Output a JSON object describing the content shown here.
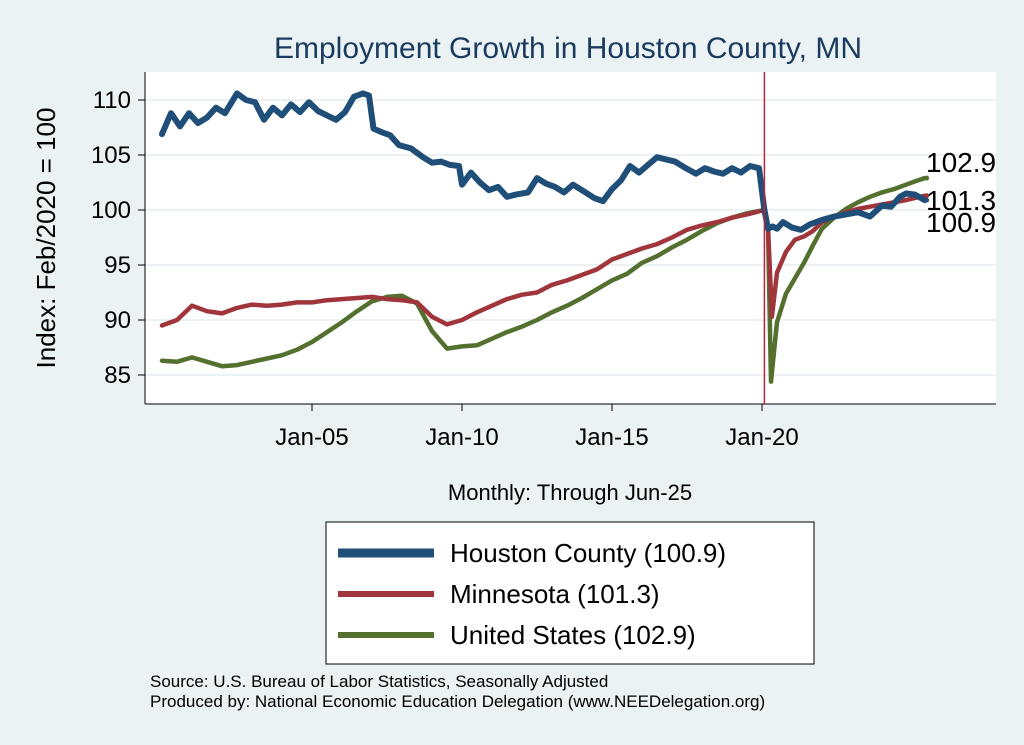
{
  "chart_data": {
    "type": "line",
    "title": "Employment Growth in Houston  County, MN",
    "ylabel": "Index: Feb/2020 = 100",
    "xlabel": "Monthly: Through Jun-25",
    "x_range": [
      "Jan-00",
      "Jun-25"
    ],
    "ylim": [
      83,
      112
    ],
    "yticks": [
      85,
      90,
      95,
      100,
      105,
      110
    ],
    "xticks": [
      {
        "label": "Jan-05",
        "t": 2005
      },
      {
        "label": "Jan-10",
        "t": 2010
      },
      {
        "label": "Jan-15",
        "t": 2015
      },
      {
        "label": "Jan-20",
        "t": 2020
      }
    ],
    "vline": {
      "t": 2020.08,
      "color": "#c0243a"
    },
    "grid": true,
    "legend_position": "bottom",
    "series": [
      {
        "name": "Houston  County",
        "legend_label": "Houston  County (100.9)",
        "end_label": "100.9",
        "color": "#1f4e79",
        "points": [
          [
            2000.0,
            106.9
          ],
          [
            2000.3,
            108.8
          ],
          [
            2000.6,
            107.6
          ],
          [
            2000.9,
            108.8
          ],
          [
            2001.2,
            107.9
          ],
          [
            2001.5,
            108.4
          ],
          [
            2001.8,
            109.3
          ],
          [
            2002.1,
            108.8
          ],
          [
            2002.5,
            110.6
          ],
          [
            2002.8,
            110.0
          ],
          [
            2003.1,
            109.8
          ],
          [
            2003.4,
            108.2
          ],
          [
            2003.7,
            109.3
          ],
          [
            2004.0,
            108.6
          ],
          [
            2004.3,
            109.6
          ],
          [
            2004.6,
            108.9
          ],
          [
            2004.9,
            109.8
          ],
          [
            2005.2,
            109.0
          ],
          [
            2005.5,
            108.6
          ],
          [
            2005.8,
            108.2
          ],
          [
            2006.1,
            108.9
          ],
          [
            2006.4,
            110.3
          ],
          [
            2006.7,
            110.6
          ],
          [
            2006.9,
            110.4
          ],
          [
            2007.05,
            107.4
          ],
          [
            2007.3,
            107.1
          ],
          [
            2007.6,
            106.8
          ],
          [
            2007.9,
            105.9
          ],
          [
            2008.3,
            105.6
          ],
          [
            2008.7,
            104.8
          ],
          [
            2009.0,
            104.3
          ],
          [
            2009.3,
            104.4
          ],
          [
            2009.6,
            104.1
          ],
          [
            2009.9,
            104.0
          ],
          [
            2010.0,
            102.3
          ],
          [
            2010.3,
            103.4
          ],
          [
            2010.6,
            102.5
          ],
          [
            2010.9,
            101.8
          ],
          [
            2011.2,
            102.1
          ],
          [
            2011.5,
            101.2
          ],
          [
            2011.8,
            101.4
          ],
          [
            2012.2,
            101.6
          ],
          [
            2012.5,
            102.9
          ],
          [
            2012.8,
            102.4
          ],
          [
            2013.1,
            102.1
          ],
          [
            2013.4,
            101.6
          ],
          [
            2013.7,
            102.3
          ],
          [
            2014.0,
            101.8
          ],
          [
            2014.4,
            101.1
          ],
          [
            2014.7,
            100.8
          ],
          [
            2015.0,
            101.9
          ],
          [
            2015.3,
            102.7
          ],
          [
            2015.6,
            104.0
          ],
          [
            2015.9,
            103.4
          ],
          [
            2016.2,
            104.1
          ],
          [
            2016.5,
            104.8
          ],
          [
            2016.8,
            104.6
          ],
          [
            2017.1,
            104.4
          ],
          [
            2017.4,
            103.9
          ],
          [
            2017.8,
            103.3
          ],
          [
            2018.1,
            103.8
          ],
          [
            2018.4,
            103.5
          ],
          [
            2018.7,
            103.3
          ],
          [
            2019.0,
            103.8
          ],
          [
            2019.3,
            103.4
          ],
          [
            2019.6,
            104.0
          ],
          [
            2019.9,
            103.8
          ],
          [
            2020.08,
            100.0
          ],
          [
            2020.2,
            98.3
          ],
          [
            2020.35,
            98.5
          ],
          [
            2020.5,
            98.3
          ],
          [
            2020.7,
            98.9
          ],
          [
            2021.0,
            98.4
          ],
          [
            2021.3,
            98.2
          ],
          [
            2021.6,
            98.7
          ],
          [
            2022.0,
            99.1
          ],
          [
            2022.4,
            99.4
          ],
          [
            2022.8,
            99.6
          ],
          [
            2023.2,
            99.8
          ],
          [
            2023.6,
            99.4
          ],
          [
            2024.0,
            100.4
          ],
          [
            2024.3,
            100.3
          ],
          [
            2024.6,
            101.2
          ],
          [
            2024.8,
            101.5
          ],
          [
            2025.1,
            101.4
          ],
          [
            2025.42,
            100.9
          ]
        ]
      },
      {
        "name": "Minnesota",
        "legend_label": "Minnesota (101.3)",
        "end_label": "101.3",
        "color": "#a0363c",
        "points": [
          [
            2000.0,
            89.5
          ],
          [
            2000.5,
            90.0
          ],
          [
            2001.0,
            91.3
          ],
          [
            2001.5,
            90.8
          ],
          [
            2002.0,
            90.6
          ],
          [
            2002.5,
            91.1
          ],
          [
            2003.0,
            91.4
          ],
          [
            2003.5,
            91.3
          ],
          [
            2004.0,
            91.4
          ],
          [
            2004.5,
            91.6
          ],
          [
            2005.0,
            91.6
          ],
          [
            2005.5,
            91.8
          ],
          [
            2006.0,
            91.9
          ],
          [
            2006.5,
            92.0
          ],
          [
            2007.0,
            92.1
          ],
          [
            2007.5,
            91.9
          ],
          [
            2008.0,
            91.8
          ],
          [
            2008.5,
            91.6
          ],
          [
            2009.0,
            90.3
          ],
          [
            2009.5,
            89.6
          ],
          [
            2010.0,
            90.0
          ],
          [
            2010.5,
            90.7
          ],
          [
            2011.0,
            91.3
          ],
          [
            2011.5,
            91.9
          ],
          [
            2012.0,
            92.3
          ],
          [
            2012.5,
            92.5
          ],
          [
            2013.0,
            93.2
          ],
          [
            2013.5,
            93.6
          ],
          [
            2014.0,
            94.1
          ],
          [
            2014.5,
            94.6
          ],
          [
            2015.0,
            95.5
          ],
          [
            2015.5,
            96.0
          ],
          [
            2016.0,
            96.5
          ],
          [
            2016.5,
            96.9
          ],
          [
            2017.0,
            97.5
          ],
          [
            2017.5,
            98.2
          ],
          [
            2018.0,
            98.6
          ],
          [
            2018.5,
            98.9
          ],
          [
            2019.0,
            99.3
          ],
          [
            2019.5,
            99.6
          ],
          [
            2020.08,
            100.0
          ],
          [
            2020.2,
            98.5
          ],
          [
            2020.33,
            90.3
          ],
          [
            2020.5,
            94.3
          ],
          [
            2020.8,
            96.2
          ],
          [
            2021.1,
            97.3
          ],
          [
            2021.4,
            97.6
          ],
          [
            2021.7,
            98.1
          ],
          [
            2022.0,
            98.9
          ],
          [
            2022.4,
            99.4
          ],
          [
            2022.8,
            99.8
          ],
          [
            2023.2,
            100.1
          ],
          [
            2023.6,
            100.3
          ],
          [
            2024.0,
            100.5
          ],
          [
            2024.4,
            100.7
          ],
          [
            2024.8,
            100.9
          ],
          [
            2025.1,
            101.1
          ],
          [
            2025.42,
            101.3
          ]
        ]
      },
      {
        "name": "United States",
        "legend_label": "United States (102.9)",
        "end_label": "102.9",
        "color": "#53702f",
        "points": [
          [
            2000.0,
            86.3
          ],
          [
            2000.5,
            86.2
          ],
          [
            2001.0,
            86.6
          ],
          [
            2001.5,
            86.2
          ],
          [
            2002.0,
            85.8
          ],
          [
            2002.5,
            85.9
          ],
          [
            2003.0,
            86.2
          ],
          [
            2003.5,
            86.5
          ],
          [
            2004.0,
            86.8
          ],
          [
            2004.5,
            87.3
          ],
          [
            2005.0,
            88.0
          ],
          [
            2005.5,
            88.9
          ],
          [
            2006.0,
            89.8
          ],
          [
            2006.5,
            90.8
          ],
          [
            2007.0,
            91.7
          ],
          [
            2007.5,
            92.1
          ],
          [
            2008.0,
            92.2
          ],
          [
            2008.5,
            91.5
          ],
          [
            2009.0,
            89.0
          ],
          [
            2009.5,
            87.4
          ],
          [
            2010.0,
            87.6
          ],
          [
            2010.5,
            87.7
          ],
          [
            2011.0,
            88.3
          ],
          [
            2011.5,
            88.9
          ],
          [
            2012.0,
            89.4
          ],
          [
            2012.5,
            90.0
          ],
          [
            2013.0,
            90.7
          ],
          [
            2013.5,
            91.3
          ],
          [
            2014.0,
            92.0
          ],
          [
            2014.5,
            92.8
          ],
          [
            2015.0,
            93.6
          ],
          [
            2015.5,
            94.2
          ],
          [
            2016.0,
            95.2
          ],
          [
            2016.5,
            95.8
          ],
          [
            2017.0,
            96.6
          ],
          [
            2017.5,
            97.3
          ],
          [
            2018.0,
            98.1
          ],
          [
            2018.5,
            98.8
          ],
          [
            2019.0,
            99.3
          ],
          [
            2019.5,
            99.7
          ],
          [
            2020.08,
            100.0
          ],
          [
            2020.2,
            98.5
          ],
          [
            2020.3,
            84.4
          ],
          [
            2020.5,
            89.8
          ],
          [
            2020.8,
            92.4
          ],
          [
            2021.1,
            93.8
          ],
          [
            2021.4,
            95.2
          ],
          [
            2021.7,
            96.8
          ],
          [
            2022.0,
            98.3
          ],
          [
            2022.4,
            99.3
          ],
          [
            2022.8,
            100.1
          ],
          [
            2023.2,
            100.7
          ],
          [
            2023.6,
            101.2
          ],
          [
            2024.0,
            101.6
          ],
          [
            2024.4,
            101.9
          ],
          [
            2024.8,
            102.3
          ],
          [
            2025.1,
            102.6
          ],
          [
            2025.42,
            102.9
          ]
        ]
      }
    ]
  },
  "footnotes": {
    "source": "Source: U.S. Bureau of Labor Statistics, Seasonally Adjusted",
    "producer": "Produced by: National Economic Education Delegation (www.NEEDelegation.org)"
  }
}
